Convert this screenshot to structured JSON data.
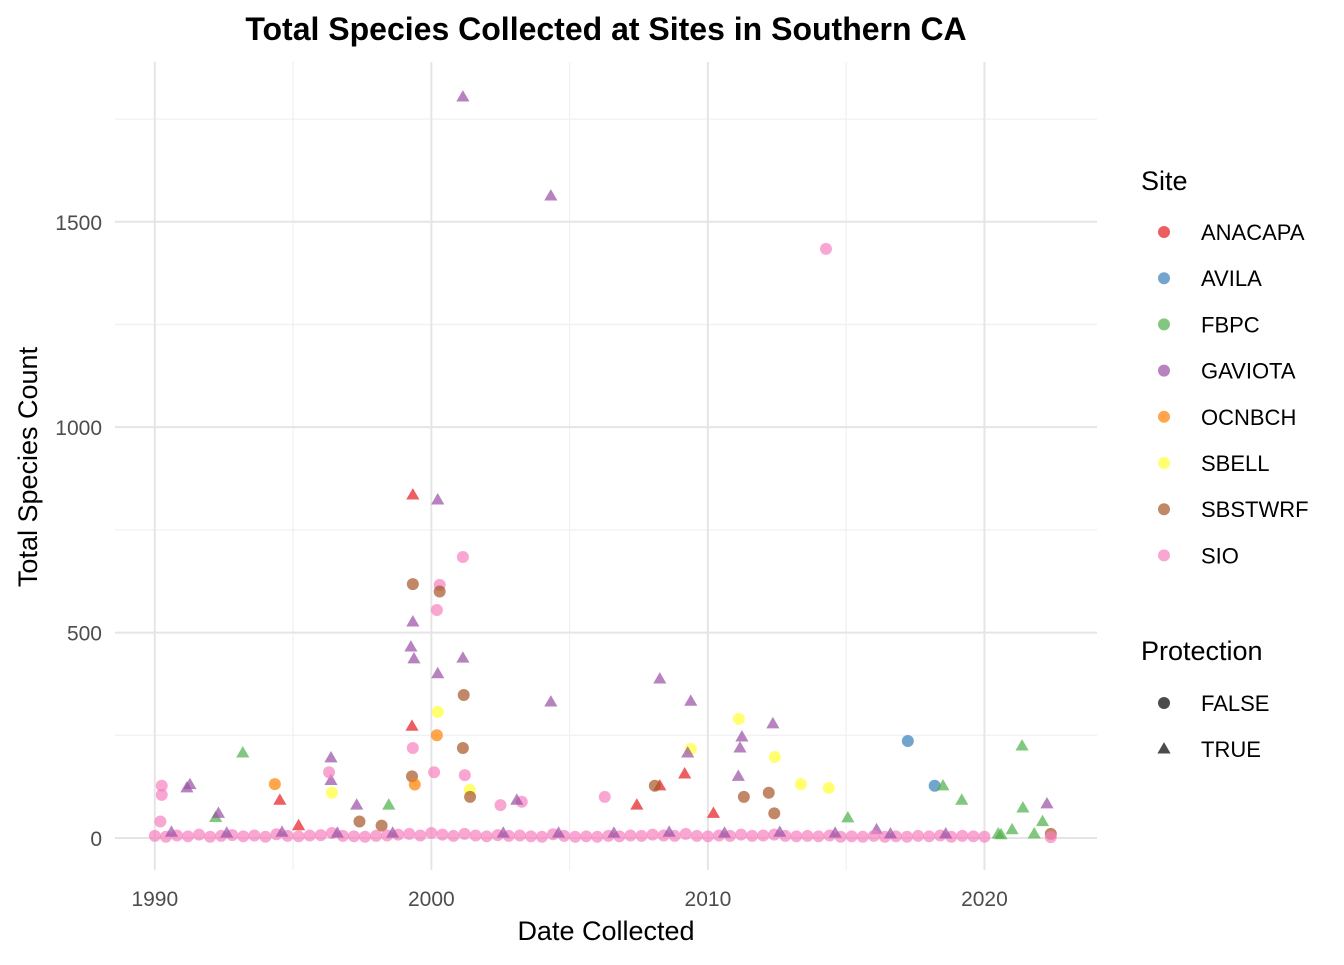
{
  "chart_data": {
    "type": "scatter",
    "title": "Total Species Collected at Sites in Southern CA",
    "xlabel": "Date Collected",
    "ylabel": "Total Species Count",
    "xlim": [
      1988.56,
      2024.07
    ],
    "ylim": [
      -78,
      1889
    ],
    "x_ticks": [
      1990,
      2000,
      2010,
      2020
    ],
    "x_tick_labels": [
      "1990",
      "2000",
      "2010",
      "2020"
    ],
    "y_ticks": [
      0,
      500,
      1000,
      1500
    ],
    "y_tick_labels": [
      "0",
      "500",
      "1000",
      "1500"
    ],
    "grid": true,
    "legend_placement": "right",
    "legends": {
      "site": {
        "title": "Site",
        "entries": [
          "ANACAPA",
          "AVILA",
          "FBPC",
          "GAVIOTA",
          "OCNBCH",
          "SBELL",
          "SBSTWRF",
          "SIO"
        ],
        "colors": [
          "#E41A1C",
          "#377EB8",
          "#4DAF4A",
          "#984EA3",
          "#FF7F00",
          "#FFFF33",
          "#A65628",
          "#F781BF"
        ]
      },
      "protection": {
        "title": "Protection",
        "entries": [
          "FALSE",
          "TRUE"
        ],
        "shapes": [
          "circle",
          "triangle"
        ]
      }
    },
    "points_format": [
      "year",
      "total_species",
      "site",
      "protection"
    ],
    "points": [
      [
        2001.14,
        1804,
        "GAVIOTA",
        true
      ],
      [
        2004.32,
        1563,
        "GAVIOTA",
        true
      ],
      [
        2014.27,
        1434,
        "SIO",
        false
      ],
      [
        1999.33,
        835,
        "ANACAPA",
        true
      ],
      [
        2000.23,
        823,
        "GAVIOTA",
        true
      ],
      [
        2001.14,
        684,
        "SIO",
        false
      ],
      [
        1999.33,
        618,
        "SBSTWRF",
        false
      ],
      [
        2000.3,
        616,
        "SIO",
        false
      ],
      [
        2000.3,
        600,
        "SBSTWRF",
        false
      ],
      [
        2000.2,
        555,
        "SIO",
        false
      ],
      [
        1999.33,
        526,
        "GAVIOTA",
        true
      ],
      [
        1999.26,
        465,
        "GAVIOTA",
        true
      ],
      [
        1999.37,
        436,
        "GAVIOTA",
        true
      ],
      [
        2001.14,
        438,
        "GAVIOTA",
        true
      ],
      [
        2000.23,
        400,
        "GAVIOTA",
        true
      ],
      [
        2001.17,
        348,
        "SBSTWRF",
        false
      ],
      [
        2008.26,
        387,
        "GAVIOTA",
        true
      ],
      [
        2009.38,
        333,
        "GAVIOTA",
        true
      ],
      [
        2004.32,
        331,
        "GAVIOTA",
        true
      ],
      [
        2011.12,
        290,
        "SBELL",
        false
      ],
      [
        2012.35,
        278,
        "GAVIOTA",
        true
      ],
      [
        2017.23,
        236,
        "AVILA",
        false
      ],
      [
        2011.23,
        246,
        "GAVIOTA",
        true
      ],
      [
        2011.16,
        219,
        "GAVIOTA",
        true
      ],
      [
        2021.36,
        224,
        "FBPC",
        true
      ],
      [
        2000.23,
        307,
        "SBELL",
        false
      ],
      [
        2009.38,
        217,
        "SBELL",
        false
      ],
      [
        2009.27,
        207,
        "GAVIOTA",
        true
      ],
      [
        1993.18,
        207,
        "FBPC",
        true
      ],
      [
        1999.3,
        272,
        "ANACAPA",
        true
      ],
      [
        2012.42,
        197,
        "SBELL",
        false
      ],
      [
        1996.37,
        195,
        "GAVIOTA",
        true
      ],
      [
        2001.14,
        219,
        "SBSTWRF",
        false
      ],
      [
        1999.33,
        219,
        "SIO",
        false
      ],
      [
        1991.27,
        130,
        "GAVIOTA",
        true
      ],
      [
        1991.16,
        122,
        "GAVIOTA",
        true
      ],
      [
        1994.34,
        131,
        "OCNBCH",
        false
      ],
      [
        1990.25,
        127,
        "SIO",
        false
      ],
      [
        1990.25,
        105,
        "SIO",
        false
      ],
      [
        1996.37,
        140,
        "GAVIOTA",
        true
      ],
      [
        2009.16,
        156,
        "ANACAPA",
        true
      ],
      [
        2013.36,
        131,
        "SBELL",
        false
      ],
      [
        2014.37,
        122,
        "SBELL",
        false
      ],
      [
        2018.2,
        127,
        "AVILA",
        false
      ],
      [
        2018.5,
        127,
        "FBPC",
        true
      ],
      [
        2008.26,
        127,
        "ANACAPA",
        true
      ],
      [
        2008.08,
        127,
        "SBSTWRF",
        false
      ],
      [
        2006.27,
        100,
        "SIO",
        false
      ],
      [
        2003.27,
        88,
        "SIO",
        false
      ],
      [
        1998.46,
        80,
        "FBPC",
        true
      ],
      [
        2003.09,
        92,
        "GAVIOTA",
        true
      ],
      [
        2019.18,
        92,
        "FBPC",
        true
      ],
      [
        2021.39,
        73,
        "FBPC",
        true
      ],
      [
        2015.06,
        49,
        "FBPC",
        true
      ],
      [
        2001.21,
        153,
        "SIO",
        false
      ],
      [
        1994.52,
        92,
        "ANACAPA",
        true
      ],
      [
        2001.39,
        117,
        "SBELL",
        false
      ],
      [
        2022.26,
        83,
        "GAVIOTA",
        true
      ],
      [
        2007.43,
        80,
        "ANACAPA",
        true
      ],
      [
        1997.3,
        80,
        "GAVIOTA",
        true
      ],
      [
        1999.3,
        150,
        "SBSTWRF",
        false
      ],
      [
        1999.4,
        130,
        "OCNBCH",
        false
      ],
      [
        2000.2,
        250,
        "OCNBCH",
        false
      ],
      [
        2000.1,
        160,
        "SIO",
        false
      ],
      [
        2001.4,
        100,
        "SBSTWRF",
        false
      ],
      [
        2002.5,
        80,
        "SIO",
        false
      ],
      [
        2010.2,
        60,
        "ANACAPA",
        true
      ],
      [
        2011.1,
        150,
        "GAVIOTA",
        true
      ],
      [
        2011.3,
        100,
        "SBSTWRF",
        false
      ],
      [
        2012.2,
        110,
        "SBSTWRF",
        false
      ],
      [
        2012.4,
        60,
        "SBSTWRF",
        false
      ],
      [
        2016.1,
        20,
        "GAVIOTA",
        true
      ],
      [
        2020.5,
        10,
        "FBPC",
        true
      ],
      [
        2021.0,
        20,
        "FBPC",
        true
      ],
      [
        2022.1,
        40,
        "FBPC",
        true
      ],
      [
        2022.4,
        10,
        "SBSTWRF",
        false
      ],
      [
        1992.2,
        50,
        "FBPC",
        true
      ],
      [
        1992.3,
        60,
        "GAVIOTA",
        true
      ],
      [
        1995.2,
        30,
        "ANACAPA",
        true
      ],
      [
        1997.4,
        40,
        "SBSTWRF",
        false
      ],
      [
        1998.2,
        30,
        "SBSTWRF",
        false
      ],
      [
        1996.3,
        160,
        "SIO",
        false
      ],
      [
        1996.4,
        110,
        "SBELL",
        false
      ],
      [
        1990.2,
        40,
        "SIO",
        false
      ],
      [
        1990.0,
        5,
        "SIO",
        false
      ],
      [
        1990.4,
        3,
        "SIO",
        false
      ],
      [
        1990.8,
        6,
        "SIO",
        false
      ],
      [
        1991.2,
        4,
        "SIO",
        false
      ],
      [
        1991.6,
        8,
        "SIO",
        false
      ],
      [
        1992.0,
        3,
        "SIO",
        false
      ],
      [
        1992.4,
        5,
        "SIO",
        false
      ],
      [
        1992.8,
        7,
        "SIO",
        false
      ],
      [
        1993.2,
        4,
        "SIO",
        false
      ],
      [
        1993.6,
        6,
        "SIO",
        false
      ],
      [
        1994.0,
        3,
        "SIO",
        false
      ],
      [
        1994.4,
        9,
        "SIO",
        false
      ],
      [
        1994.8,
        5,
        "SIO",
        false
      ],
      [
        1995.2,
        4,
        "SIO",
        false
      ],
      [
        1995.6,
        6,
        "SIO",
        false
      ],
      [
        1996.0,
        7,
        "SIO",
        false
      ],
      [
        1996.4,
        12,
        "SIO",
        false
      ],
      [
        1996.8,
        5,
        "SIO",
        false
      ],
      [
        1997.2,
        4,
        "SIO",
        false
      ],
      [
        1997.6,
        3,
        "SIO",
        false
      ],
      [
        1998.0,
        5,
        "SIO",
        false
      ],
      [
        1998.4,
        6,
        "SIO",
        false
      ],
      [
        1998.8,
        8,
        "SIO",
        false
      ],
      [
        1999.2,
        10,
        "SIO",
        false
      ],
      [
        1999.6,
        6,
        "SIO",
        false
      ],
      [
        2000.0,
        12,
        "SIO",
        false
      ],
      [
        2000.4,
        8,
        "SIO",
        false
      ],
      [
        2000.8,
        5,
        "SIO",
        false
      ],
      [
        2001.2,
        10,
        "SIO",
        false
      ],
      [
        2001.6,
        6,
        "SIO",
        false
      ],
      [
        2002.0,
        4,
        "SIO",
        false
      ],
      [
        2002.4,
        7,
        "SIO",
        false
      ],
      [
        2002.8,
        5,
        "SIO",
        false
      ],
      [
        2003.2,
        6,
        "SIO",
        false
      ],
      [
        2003.6,
        4,
        "SIO",
        false
      ],
      [
        2004.0,
        3,
        "SIO",
        false
      ],
      [
        2004.4,
        9,
        "SIO",
        false
      ],
      [
        2004.8,
        5,
        "SIO",
        false
      ],
      [
        2005.2,
        3,
        "SIO",
        false
      ],
      [
        2005.6,
        4,
        "SIO",
        false
      ],
      [
        2006.0,
        3,
        "SIO",
        false
      ],
      [
        2006.4,
        5,
        "SIO",
        false
      ],
      [
        2006.8,
        4,
        "SIO",
        false
      ],
      [
        2007.2,
        6,
        "SIO",
        false
      ],
      [
        2007.6,
        5,
        "SIO",
        false
      ],
      [
        2008.0,
        8,
        "SIO",
        false
      ],
      [
        2008.4,
        6,
        "SIO",
        false
      ],
      [
        2008.8,
        5,
        "SIO",
        false
      ],
      [
        2009.2,
        10,
        "SIO",
        false
      ],
      [
        2009.6,
        5,
        "SIO",
        false
      ],
      [
        2010.0,
        4,
        "SIO",
        false
      ],
      [
        2010.4,
        6,
        "SIO",
        false
      ],
      [
        2010.8,
        5,
        "SIO",
        false
      ],
      [
        2011.2,
        8,
        "SIO",
        false
      ],
      [
        2011.6,
        5,
        "SIO",
        false
      ],
      [
        2012.0,
        6,
        "SIO",
        false
      ],
      [
        2012.4,
        8,
        "SIO",
        false
      ],
      [
        2012.8,
        5,
        "SIO",
        false
      ],
      [
        2013.2,
        4,
        "SIO",
        false
      ],
      [
        2013.6,
        5,
        "SIO",
        false
      ],
      [
        2014.0,
        4,
        "SIO",
        false
      ],
      [
        2014.4,
        6,
        "SIO",
        false
      ],
      [
        2014.8,
        3,
        "SIO",
        false
      ],
      [
        2015.2,
        4,
        "SIO",
        false
      ],
      [
        2015.6,
        3,
        "SIO",
        false
      ],
      [
        2016.0,
        5,
        "SIO",
        false
      ],
      [
        2016.4,
        3,
        "SIO",
        false
      ],
      [
        2016.8,
        4,
        "SIO",
        false
      ],
      [
        2017.2,
        3,
        "SIO",
        false
      ],
      [
        2017.6,
        5,
        "SIO",
        false
      ],
      [
        2018.0,
        4,
        "SIO",
        false
      ],
      [
        2018.4,
        6,
        "SIO",
        false
      ],
      [
        2018.8,
        3,
        "SIO",
        false
      ],
      [
        2019.2,
        5,
        "SIO",
        false
      ],
      [
        2019.6,
        4,
        "SIO",
        false
      ],
      [
        2020.0,
        3,
        "SIO",
        false
      ],
      [
        2022.4,
        2,
        "SIO",
        false
      ],
      [
        1990.6,
        14,
        "GAVIOTA",
        true
      ],
      [
        1992.6,
        12,
        "GAVIOTA",
        true
      ],
      [
        1994.6,
        14,
        "GAVIOTA",
        true
      ],
      [
        1996.6,
        12,
        "GAVIOTA",
        true
      ],
      [
        1998.6,
        12,
        "GAVIOTA",
        true
      ],
      [
        2002.6,
        12,
        "GAVIOTA",
        true
      ],
      [
        2004.6,
        12,
        "GAVIOTA",
        true
      ],
      [
        2006.6,
        12,
        "GAVIOTA",
        true
      ],
      [
        2008.6,
        14,
        "GAVIOTA",
        true
      ],
      [
        2010.6,
        12,
        "GAVIOTA",
        true
      ],
      [
        2012.6,
        14,
        "GAVIOTA",
        true
      ],
      [
        2014.6,
        12,
        "GAVIOTA",
        true
      ],
      [
        2016.6,
        10,
        "GAVIOTA",
        true
      ],
      [
        2018.6,
        10,
        "GAVIOTA",
        true
      ],
      [
        2020.6,
        8,
        "FBPC",
        true
      ],
      [
        2021.8,
        10,
        "FBPC",
        true
      ]
    ]
  }
}
